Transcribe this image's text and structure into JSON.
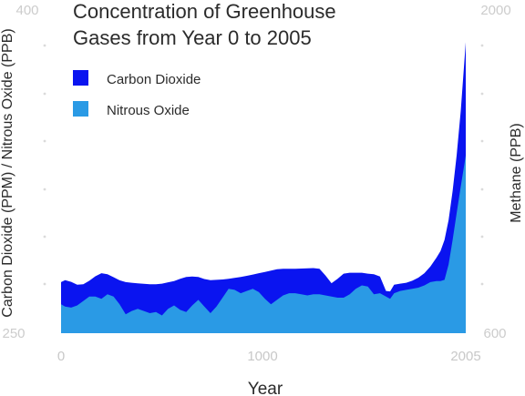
{
  "chart_data": {
    "type": "area",
    "title": [
      "Concentration of Greenhouse",
      "Gases from Year 0 to 2005"
    ],
    "xlabel": "Year",
    "ylabel_left": "Carbon Dioxide (PPM) / Nitrous Oxide (PPB)",
    "ylabel_right": "Methane (PPB)",
    "xlim": [
      0,
      2005
    ],
    "ylim_left": [
      250,
      400
    ],
    "ylim_right": [
      600,
      2000
    ],
    "x_ticks": [
      "0",
      "1000",
      "2005"
    ],
    "y_left_ticks": [
      "250",
      "400"
    ],
    "y_right_ticks": [
      "600",
      "2000"
    ],
    "grid": "dots",
    "legend_position": "top-left",
    "x": [
      0,
      20,
      50,
      80,
      110,
      140,
      170,
      200,
      230,
      260,
      290,
      320,
      350,
      380,
      410,
      440,
      470,
      500,
      530,
      560,
      590,
      620,
      650,
      680,
      710,
      740,
      770,
      800,
      830,
      860,
      890,
      920,
      950,
      980,
      1010,
      1040,
      1070,
      1100,
      1130,
      1160,
      1190,
      1220,
      1250,
      1280,
      1310,
      1340,
      1370,
      1400,
      1430,
      1460,
      1490,
      1520,
      1550,
      1580,
      1610,
      1630,
      1650,
      1680,
      1710,
      1740,
      1770,
      1800,
      1830,
      1860,
      1880,
      1900,
      1920,
      1940,
      1960,
      1980,
      2005
    ],
    "series": [
      {
        "name": "Carbon Dioxide",
        "color": "#0a14f0",
        "values": [
          273.0,
          273.9,
          273.1,
          271.8,
          272.0,
          273.6,
          275.6,
          277.0,
          276.5,
          275.2,
          273.8,
          273.0,
          272.7,
          272.4,
          272.2,
          272.0,
          272.0,
          272.3,
          272.9,
          273.5,
          274.5,
          275.3,
          275.5,
          275.3,
          274.4,
          273.9,
          274.0,
          274.2,
          274.5,
          274.9,
          275.3,
          275.8,
          276.4,
          277.0,
          277.6,
          278.2,
          278.8,
          279.0,
          279.0,
          279.0,
          279.1,
          279.2,
          279.3,
          279.0,
          276.0,
          272.5,
          274.5,
          276.8,
          277.2,
          277.2,
          277.2,
          276.8,
          276.5,
          275.5,
          269.0,
          268.8,
          271.8,
          272.3,
          272.7,
          273.6,
          275.0,
          277.0,
          280.0,
          284.0,
          287.0,
          292.0,
          301.0,
          314.0,
          330.0,
          350.0,
          381.0
        ]
      },
      {
        "name": "Nitrous Oxide",
        "color": "#2a9ae5",
        "values": [
          263.0,
          262.0,
          261.5,
          262.5,
          264.5,
          266.5,
          266.5,
          265.5,
          267.5,
          266.5,
          263.0,
          258.5,
          260.0,
          261.0,
          260.0,
          259.0,
          259.5,
          258.0,
          261.0,
          262.5,
          260.5,
          259.5,
          262.5,
          265.0,
          262.0,
          259.0,
          262.0,
          266.0,
          270.0,
          269.5,
          268.0,
          269.0,
          270.0,
          268.5,
          265.5,
          263.0,
          265.0,
          267.0,
          268.0,
          268.0,
          267.5,
          267.0,
          267.5,
          267.5,
          267.0,
          266.5,
          266.0,
          266.0,
          267.5,
          270.0,
          271.5,
          271.0,
          267.5,
          268.0,
          266.5,
          265.5,
          268.0,
          269.0,
          269.5,
          270.0,
          270.5,
          271.5,
          273.0,
          273.5,
          273.5,
          274.0,
          281.0,
          292.0,
          304.0,
          316.0,
          330.0
        ]
      }
    ]
  }
}
